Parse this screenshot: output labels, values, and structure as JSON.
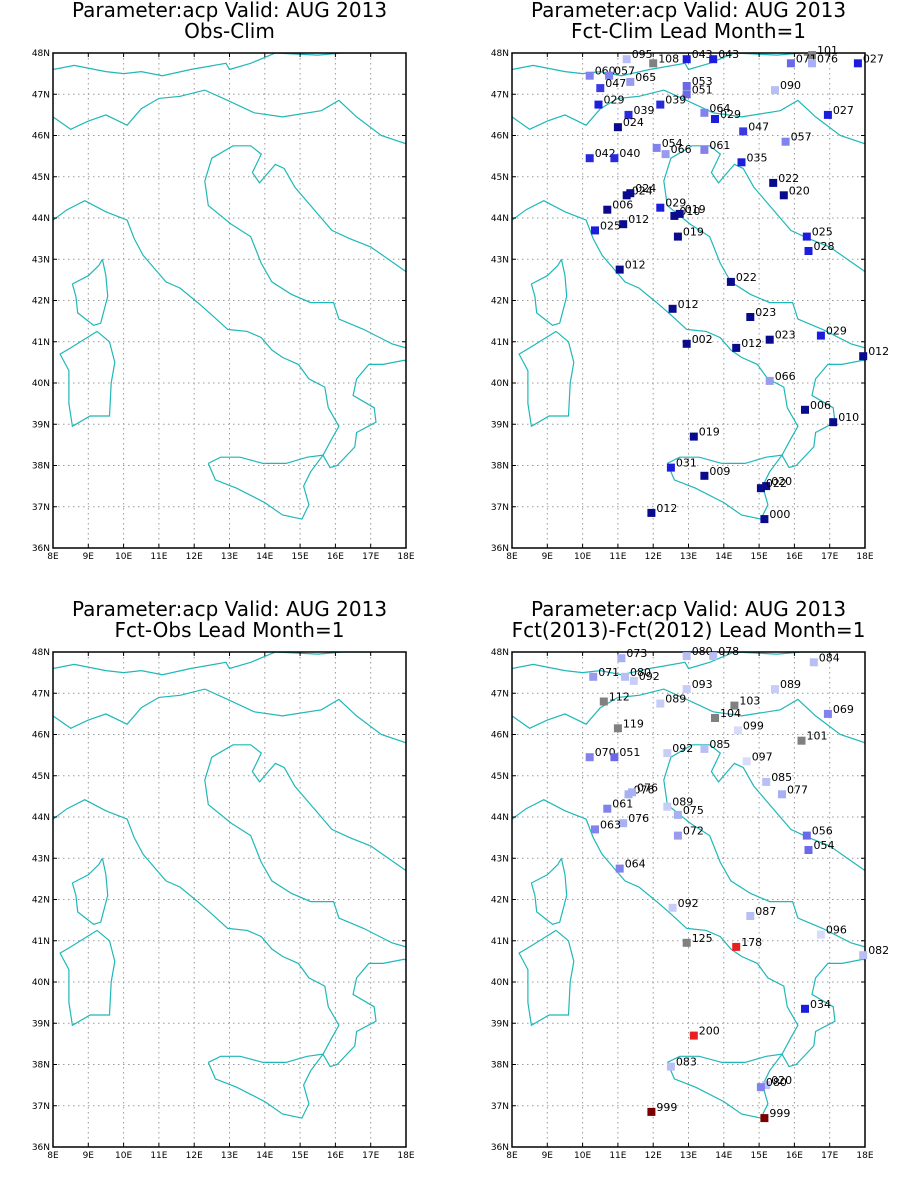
{
  "page": {
    "title": "GrADS station map panels"
  },
  "style": {
    "coast_color": "#1fb8b8",
    "frame_color": "#000000",
    "grid_color": "#9a9a9a"
  },
  "chart_data": [
    {
      "type": "scatter",
      "title_line1": "Parameter:acp Valid: AUG 2013",
      "title_line2": "Obs-Clim",
      "x_ticks": [
        "8E",
        "9E",
        "10E",
        "11E",
        "12E",
        "13E",
        "14E",
        "15E",
        "16E",
        "17E",
        "18E"
      ],
      "y_ticks": [
        "36N",
        "37N",
        "38N",
        "39N",
        "40N",
        "41N",
        "42N",
        "43N",
        "44N",
        "45N",
        "46N",
        "47N",
        "48N"
      ],
      "xlim": [
        8,
        18
      ],
      "ylim": [
        36,
        48
      ],
      "points": []
    },
    {
      "type": "scatter",
      "title_line1": "Parameter:acp Valid: AUG 2013",
      "title_line2": "Fct-Clim Lead Month=1",
      "x_ticks": [
        "8E",
        "9E",
        "10E",
        "11E",
        "12E",
        "13E",
        "14E",
        "15E",
        "16E",
        "17E",
        "18E"
      ],
      "y_ticks": [
        "36N",
        "37N",
        "38N",
        "39N",
        "40N",
        "41N",
        "42N",
        "43N",
        "44N",
        "45N",
        "46N",
        "47N",
        "48N"
      ],
      "xlim": [
        8,
        18
      ],
      "ylim": [
        36,
        48
      ],
      "points": [
        {
          "lon": 11.25,
          "lat": 47.85,
          "label": "095",
          "color": "#b8bff5"
        },
        {
          "lon": 12.0,
          "lat": 47.75,
          "label": "108",
          "color": "#808080"
        },
        {
          "lon": 12.95,
          "lat": 47.85,
          "label": "043",
          "color": "#1c1cdc"
        },
        {
          "lon": 13.7,
          "lat": 47.85,
          "label": "043",
          "color": "#1c1cdc"
        },
        {
          "lon": 16.5,
          "lat": 47.95,
          "label": "101",
          "color": "#808080"
        },
        {
          "lon": 15.9,
          "lat": 47.75,
          "label": "071",
          "color": "#6a6ae8"
        },
        {
          "lon": 16.5,
          "lat": 47.75,
          "label": "076",
          "color": "#a8b0f5"
        },
        {
          "lon": 17.8,
          "lat": 47.75,
          "label": "027",
          "color": "#1c1cdc"
        },
        {
          "lon": 10.2,
          "lat": 47.45,
          "label": "060",
          "color": "#8282ec"
        },
        {
          "lon": 10.75,
          "lat": 47.45,
          "label": "057",
          "color": "#8282ec"
        },
        {
          "lon": 11.35,
          "lat": 47.3,
          "label": "065",
          "color": "#9a9aee"
        },
        {
          "lon": 10.5,
          "lat": 47.15,
          "label": "047",
          "color": "#3a3ae0"
        },
        {
          "lon": 12.95,
          "lat": 47.2,
          "label": "053",
          "color": "#6a6ae8"
        },
        {
          "lon": 12.95,
          "lat": 47.0,
          "label": "051",
          "color": "#6a6ae8"
        },
        {
          "lon": 15.45,
          "lat": 47.1,
          "label": "090",
          "color": "#b8bff5"
        },
        {
          "lon": 10.45,
          "lat": 46.75,
          "label": "029",
          "color": "#1c1cdc"
        },
        {
          "lon": 12.2,
          "lat": 46.75,
          "label": "039",
          "color": "#2828dc"
        },
        {
          "lon": 11.3,
          "lat": 46.5,
          "label": "039",
          "color": "#2828dc"
        },
        {
          "lon": 13.45,
          "lat": 46.55,
          "label": "064",
          "color": "#8282ec"
        },
        {
          "lon": 13.75,
          "lat": 46.4,
          "label": "029",
          "color": "#1c1cdc"
        },
        {
          "lon": 16.95,
          "lat": 46.5,
          "label": "027",
          "color": "#1c1cdc"
        },
        {
          "lon": 11.0,
          "lat": 46.2,
          "label": "024",
          "color": "#0a0a8c"
        },
        {
          "lon": 14.55,
          "lat": 46.1,
          "label": "047",
          "color": "#3a3ae0"
        },
        {
          "lon": 15.75,
          "lat": 45.85,
          "label": "057",
          "color": "#8282ec"
        },
        {
          "lon": 12.1,
          "lat": 45.7,
          "label": "054",
          "color": "#8282ec"
        },
        {
          "lon": 12.35,
          "lat": 45.55,
          "label": "066",
          "color": "#9a9aee"
        },
        {
          "lon": 13.45,
          "lat": 45.65,
          "label": "061",
          "color": "#8282ec"
        },
        {
          "lon": 10.2,
          "lat": 45.45,
          "label": "042",
          "color": "#2828dc"
        },
        {
          "lon": 10.9,
          "lat": 45.45,
          "label": "040",
          "color": "#2828dc"
        },
        {
          "lon": 14.5,
          "lat": 45.35,
          "label": "035",
          "color": "#1c1cdc"
        },
        {
          "lon": 15.4,
          "lat": 44.85,
          "label": "022",
          "color": "#0a0a8c"
        },
        {
          "lon": 15.7,
          "lat": 44.55,
          "label": "020",
          "color": "#0a0a8c"
        },
        {
          "lon": 11.25,
          "lat": 44.55,
          "label": "024",
          "color": "#0a0a8c"
        },
        {
          "lon": 11.35,
          "lat": 44.6,
          "label": "024",
          "color": "#0a0a8c"
        },
        {
          "lon": 10.7,
          "lat": 44.2,
          "label": "006",
          "color": "#0a0a8c"
        },
        {
          "lon": 12.2,
          "lat": 44.25,
          "label": "029",
          "color": "#1c1cdc"
        },
        {
          "lon": 12.6,
          "lat": 44.05,
          "label": "010",
          "color": "#0a0a8c"
        },
        {
          "lon": 12.75,
          "lat": 44.1,
          "label": "019",
          "color": "#0a0a8c"
        },
        {
          "lon": 11.15,
          "lat": 43.85,
          "label": "012",
          "color": "#0a0a8c"
        },
        {
          "lon": 10.35,
          "lat": 43.7,
          "label": "025",
          "color": "#1c1cdc"
        },
        {
          "lon": 12.7,
          "lat": 43.55,
          "label": "019",
          "color": "#0a0a8c"
        },
        {
          "lon": 16.35,
          "lat": 43.55,
          "label": "025",
          "color": "#1c1cdc"
        },
        {
          "lon": 16.4,
          "lat": 43.2,
          "label": "028",
          "color": "#1c1cdc"
        },
        {
          "lon": 11.05,
          "lat": 42.75,
          "label": "012",
          "color": "#0a0a8c"
        },
        {
          "lon": 14.2,
          "lat": 42.45,
          "label": "022",
          "color": "#0a0a8c"
        },
        {
          "lon": 12.55,
          "lat": 41.8,
          "label": "012",
          "color": "#0a0a8c"
        },
        {
          "lon": 14.75,
          "lat": 41.6,
          "label": "023",
          "color": "#0a0a8c"
        },
        {
          "lon": 16.75,
          "lat": 41.15,
          "label": "029",
          "color": "#1c1cdc"
        },
        {
          "lon": 15.3,
          "lat": 41.05,
          "label": "023",
          "color": "#0a0a8c"
        },
        {
          "lon": 12.95,
          "lat": 40.95,
          "label": "002",
          "color": "#0a0a8c"
        },
        {
          "lon": 14.35,
          "lat": 40.85,
          "label": "012",
          "color": "#0a0a8c"
        },
        {
          "lon": 17.95,
          "lat": 40.65,
          "label": "012",
          "color": "#0a0a8c"
        },
        {
          "lon": 15.3,
          "lat": 40.05,
          "label": "066",
          "color": "#9a9aee"
        },
        {
          "lon": 16.3,
          "lat": 39.35,
          "label": "006",
          "color": "#0a0a8c"
        },
        {
          "lon": 17.1,
          "lat": 39.05,
          "label": "010",
          "color": "#0a0a8c"
        },
        {
          "lon": 13.15,
          "lat": 38.7,
          "label": "019",
          "color": "#0a0a8c"
        },
        {
          "lon": 12.5,
          "lat": 37.95,
          "label": "031",
          "color": "#1c1cdc"
        },
        {
          "lon": 13.45,
          "lat": 37.75,
          "label": "009",
          "color": "#0a0a8c"
        },
        {
          "lon": 15.2,
          "lat": 37.5,
          "label": "020",
          "color": "#0a0a8c"
        },
        {
          "lon": 15.05,
          "lat": 37.45,
          "label": "022",
          "color": "#0a0a8c"
        },
        {
          "lon": 11.95,
          "lat": 36.85,
          "label": "012",
          "color": "#0a0a8c"
        },
        {
          "lon": 15.15,
          "lat": 36.7,
          "label": "000",
          "color": "#0a0a8c"
        }
      ]
    },
    {
      "type": "scatter",
      "title_line1": "Parameter:acp Valid: AUG 2013",
      "title_line2": "Fct-Obs Lead Month=1",
      "x_ticks": [
        "8E",
        "9E",
        "10E",
        "11E",
        "12E",
        "13E",
        "14E",
        "15E",
        "16E",
        "17E",
        "18E"
      ],
      "y_ticks": [
        "36N",
        "37N",
        "38N",
        "39N",
        "40N",
        "41N",
        "42N",
        "43N",
        "44N",
        "45N",
        "46N",
        "47N",
        "48N"
      ],
      "xlim": [
        8,
        18
      ],
      "ylim": [
        36,
        48
      ],
      "points": []
    },
    {
      "type": "scatter",
      "title_line1": "Parameter:acp Valid: AUG 2013",
      "title_line2": "Fct(2013)-Fct(2012) Lead Month=1",
      "x_ticks": [
        "8E",
        "9E",
        "10E",
        "11E",
        "12E",
        "13E",
        "14E",
        "15E",
        "16E",
        "17E",
        "18E"
      ],
      "y_ticks": [
        "36N",
        "37N",
        "38N",
        "39N",
        "40N",
        "41N",
        "42N",
        "43N",
        "44N",
        "45N",
        "46N",
        "47N",
        "48N"
      ],
      "xlim": [
        8,
        18
      ],
      "ylim": [
        36,
        48
      ],
      "points": [
        {
          "lon": 11.1,
          "lat": 47.85,
          "label": "073",
          "color": "#a8b0f5"
        },
        {
          "lon": 12.95,
          "lat": 47.9,
          "label": "080",
          "color": "#b8bff5"
        },
        {
          "lon": 13.7,
          "lat": 47.9,
          "label": "078",
          "color": "#b8bff5"
        },
        {
          "lon": 16.55,
          "lat": 47.75,
          "label": "084",
          "color": "#b8bff5"
        },
        {
          "lon": 10.3,
          "lat": 47.4,
          "label": "071",
          "color": "#9a9aee"
        },
        {
          "lon": 11.2,
          "lat": 47.4,
          "label": "080",
          "color": "#b8bff5"
        },
        {
          "lon": 11.45,
          "lat": 47.3,
          "label": "092",
          "color": "#c8cdf8"
        },
        {
          "lon": 12.95,
          "lat": 47.1,
          "label": "093",
          "color": "#c8cdf8"
        },
        {
          "lon": 15.45,
          "lat": 47.1,
          "label": "089",
          "color": "#c8cdf8"
        },
        {
          "lon": 10.6,
          "lat": 46.8,
          "label": "112",
          "color": "#808080"
        },
        {
          "lon": 12.2,
          "lat": 46.75,
          "label": "089",
          "color": "#c8cdf8"
        },
        {
          "lon": 14.3,
          "lat": 46.7,
          "label": "103",
          "color": "#808080"
        },
        {
          "lon": 13.75,
          "lat": 46.4,
          "label": "104",
          "color": "#808080"
        },
        {
          "lon": 16.95,
          "lat": 46.5,
          "label": "069",
          "color": "#8282ec"
        },
        {
          "lon": 11.0,
          "lat": 46.15,
          "label": "119",
          "color": "#808080"
        },
        {
          "lon": 14.4,
          "lat": 46.1,
          "label": "099",
          "color": "#d8dcfa"
        },
        {
          "lon": 16.2,
          "lat": 45.85,
          "label": "101",
          "color": "#808080"
        },
        {
          "lon": 13.45,
          "lat": 45.65,
          "label": "085",
          "color": "#b8bff5"
        },
        {
          "lon": 12.4,
          "lat": 45.55,
          "label": "092",
          "color": "#c8cdf8"
        },
        {
          "lon": 10.2,
          "lat": 45.45,
          "label": "070",
          "color": "#8282ec"
        },
        {
          "lon": 10.9,
          "lat": 45.45,
          "label": "051",
          "color": "#6a6ae8"
        },
        {
          "lon": 14.65,
          "lat": 45.35,
          "label": "097",
          "color": "#d8dcfa"
        },
        {
          "lon": 15.2,
          "lat": 44.85,
          "label": "085",
          "color": "#b8bff5"
        },
        {
          "lon": 15.65,
          "lat": 44.55,
          "label": "077",
          "color": "#a8b0f5"
        },
        {
          "lon": 11.3,
          "lat": 44.55,
          "label": "076",
          "color": "#a8b0f5"
        },
        {
          "lon": 11.4,
          "lat": 44.6,
          "label": "076",
          "color": "#a8b0f5"
        },
        {
          "lon": 10.7,
          "lat": 44.2,
          "label": "061",
          "color": "#8282ec"
        },
        {
          "lon": 12.4,
          "lat": 44.25,
          "label": "089",
          "color": "#c8cdf8"
        },
        {
          "lon": 12.7,
          "lat": 44.05,
          "label": "075",
          "color": "#a8b0f5"
        },
        {
          "lon": 11.15,
          "lat": 43.85,
          "label": "076",
          "color": "#a8b0f5"
        },
        {
          "lon": 10.35,
          "lat": 43.7,
          "label": "063",
          "color": "#8282ec"
        },
        {
          "lon": 12.7,
          "lat": 43.55,
          "label": "072",
          "color": "#9a9aee"
        },
        {
          "lon": 16.35,
          "lat": 43.55,
          "label": "056",
          "color": "#6a6ae8"
        },
        {
          "lon": 16.4,
          "lat": 43.2,
          "label": "054",
          "color": "#6a6ae8"
        },
        {
          "lon": 11.05,
          "lat": 42.75,
          "label": "064",
          "color": "#8282ec"
        },
        {
          "lon": 12.55,
          "lat": 41.8,
          "label": "092",
          "color": "#c8cdf8"
        },
        {
          "lon": 14.75,
          "lat": 41.6,
          "label": "087",
          "color": "#b8bff5"
        },
        {
          "lon": 16.75,
          "lat": 41.15,
          "label": "096",
          "color": "#d8dcfa"
        },
        {
          "lon": 12.95,
          "lat": 40.95,
          "label": "125",
          "color": "#808080"
        },
        {
          "lon": 14.35,
          "lat": 40.85,
          "label": "178",
          "color": "#e82020"
        },
        {
          "lon": 17.95,
          "lat": 40.65,
          "label": "082",
          "color": "#b8bff5"
        },
        {
          "lon": 16.3,
          "lat": 39.35,
          "label": "034",
          "color": "#1c1cdc"
        },
        {
          "lon": 13.15,
          "lat": 38.7,
          "label": "200",
          "color": "#e82020"
        },
        {
          "lon": 12.5,
          "lat": 37.95,
          "label": "083",
          "color": "#b8bff5"
        },
        {
          "lon": 15.2,
          "lat": 37.5,
          "label": "020",
          "color": "#b8bff5"
        },
        {
          "lon": 15.05,
          "lat": 37.45,
          "label": "080",
          "color": "#8282ec"
        },
        {
          "lon": 11.95,
          "lat": 36.85,
          "label": "999",
          "color": "#7a0000"
        },
        {
          "lon": 15.15,
          "lat": 36.7,
          "label": "999",
          "color": "#7a0000"
        }
      ]
    }
  ]
}
